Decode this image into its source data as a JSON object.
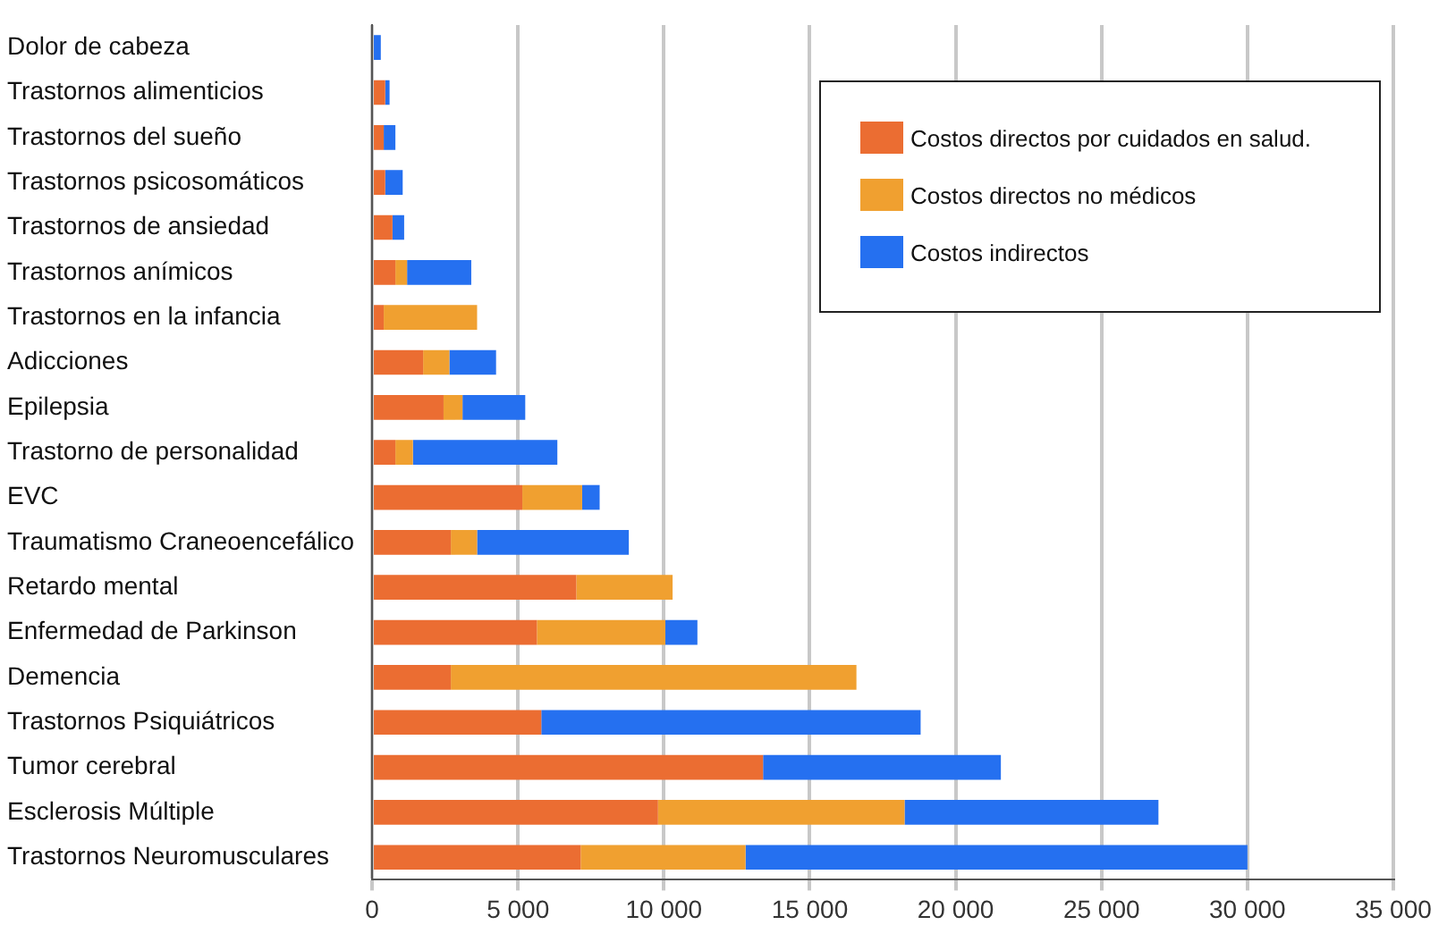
{
  "chart_data": {
    "type": "bar",
    "orientation": "horizontal",
    "stacked": true,
    "categories": [
      "Dolor de cabeza",
      "Trastornos alimenticios",
      "Trastornos del sueño",
      "Trastornos psicosomáticos",
      "Trastornos de ansiedad",
      "Trastornos anímicos",
      "Trastornos en la infancia",
      "Adicciones",
      "Epilepsia",
      "Trastorno de personalidad",
      "EVC",
      "Traumatismo Craneoencefálico",
      "Retardo mental",
      "Enfermedad de Parkinson",
      "Demencia",
      "Trastornos Psiquiátricos",
      "Tumor cerebral",
      "Esclerosis Múltiple",
      "Trastornos Neuromusculares"
    ],
    "series": [
      {
        "name": "Costos directos por cuidados en salud.",
        "color": "#eb6d32",
        "values": [
          0,
          450,
          400,
          450,
          700,
          800,
          400,
          1750,
          2450,
          800,
          5150,
          2700,
          7000,
          5650,
          2700,
          5800,
          13400,
          9800,
          7150
        ]
      },
      {
        "name": "Costos directos no médicos",
        "color": "#f0a030",
        "values": [
          0,
          0,
          0,
          0,
          0,
          400,
          3200,
          900,
          650,
          600,
          2050,
          900,
          3300,
          4400,
          13900,
          0,
          0,
          8450,
          5650
        ]
      },
      {
        "name": "Costos indirectos",
        "color": "#2570f0",
        "values": [
          300,
          150,
          400,
          600,
          400,
          2200,
          0,
          1600,
          2150,
          4950,
          600,
          5200,
          0,
          1100,
          0,
          13000,
          8150,
          8700,
          17200
        ]
      }
    ],
    "xlim": [
      0,
      35000
    ],
    "xticks": [
      0,
      {
        "value": 5000,
        "label": "5 000"
      },
      {
        "value": 10000,
        "label": "10 000"
      },
      {
        "value": 15000,
        "label": "15 000"
      },
      {
        "value": 20000,
        "label": "20 000"
      },
      {
        "value": 25000,
        "label": "25 000"
      },
      {
        "value": 30000,
        "label": "30 000"
      },
      {
        "value": 35000,
        "label": "35 000"
      }
    ],
    "grid": "x",
    "legend": "top right"
  }
}
